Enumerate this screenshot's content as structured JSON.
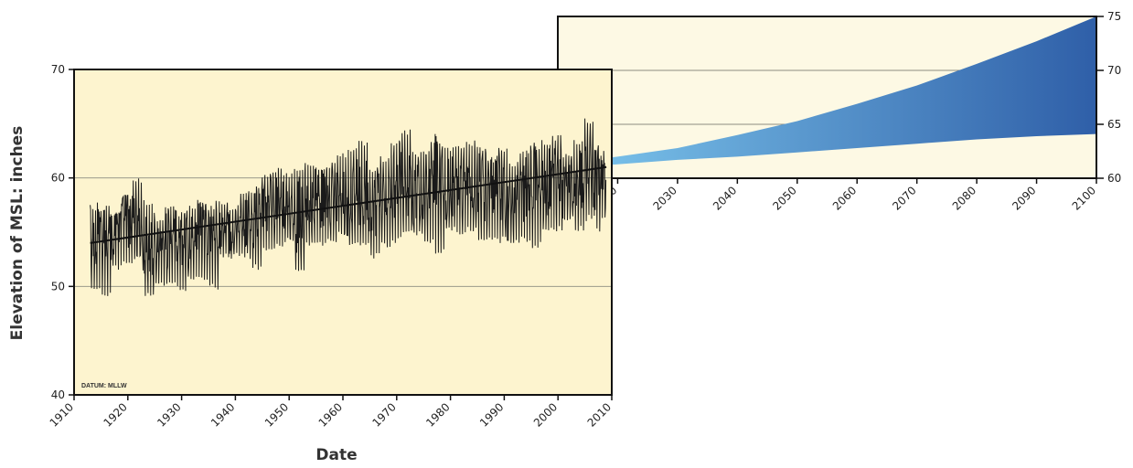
{
  "chart_data": [
    {
      "type": "line",
      "xlabel": "Date",
      "ylabel": "Elevation of MSL: inches",
      "annotation": "DATUM: MLLW",
      "xlim": [
        1910,
        2010
      ],
      "ylim": [
        40,
        70
      ],
      "x_ticks": [
        "1910",
        "1920",
        "1930",
        "1940",
        "1950",
        "1960",
        "1970",
        "1980",
        "1990",
        "2000",
        "2010"
      ],
      "y_ticks": [
        "40",
        "50",
        "60",
        "70"
      ],
      "grid": "horizontal",
      "background": "#fdf4cf",
      "series": [
        {
          "style": "monthly mean",
          "color": "#1a1a1a",
          "x": [
            1913,
            1915,
            1917,
            1919,
            1921,
            1923,
            1925,
            1927,
            1929,
            1931,
            1933,
            1935,
            1937,
            1939,
            1941,
            1943,
            1945,
            1947,
            1949,
            1951,
            1953,
            1955,
            1957,
            1959,
            1961,
            1963,
            1965,
            1967,
            1969,
            1971,
            1973,
            1975,
            1977,
            1979,
            1981,
            1983,
            1985,
            1987,
            1989,
            1991,
            1993,
            1995,
            1997,
            1999,
            2001,
            2003,
            2005,
            2007,
            2008
          ],
          "y": [
            54.5,
            55.5,
            54.5,
            56.0,
            56.0,
            54.0,
            53.5,
            54.0,
            55.0,
            54.0,
            55.5,
            54.5,
            55.5,
            55.0,
            55.5,
            56.0,
            57.0,
            58.0,
            57.0,
            56.5,
            57.0,
            58.0,
            58.0,
            58.5,
            57.0,
            58.5,
            57.5,
            58.0,
            59.0,
            60.0,
            58.5,
            58.5,
            61.0,
            59.0,
            59.0,
            60.0,
            59.0,
            59.0,
            59.5,
            57.0,
            58.5,
            60.0,
            59.0,
            60.0,
            59.5,
            60.0,
            60.5,
            60.0,
            59.5
          ],
          "y_min": [
            49.5,
            49.0,
            51.5,
            52.0,
            52.5,
            48.8,
            50.0,
            50.0,
            49.5,
            50.5,
            50.5,
            49.7,
            52.5,
            52.5,
            52.5,
            51.5,
            53.0,
            53.5,
            54.0,
            51.0,
            53.5,
            53.5,
            54.0,
            54.5,
            53.5,
            53.5,
            52.5,
            53.5,
            54.0,
            55.0,
            54.5,
            54.0,
            53.0,
            55.0,
            54.5,
            55.0,
            54.0,
            54.0,
            54.0,
            54.0,
            54.0,
            53.5,
            55.0,
            55.0,
            56.0,
            55.0,
            56.0,
            54.8,
            56.0
          ],
          "y_max": [
            57.5,
            57.5,
            57.0,
            58.5,
            60.0,
            58.0,
            56.5,
            57.5,
            57.0,
            57.5,
            58.0,
            57.5,
            58.0,
            57.5,
            59.0,
            59.0,
            60.5,
            61.0,
            60.5,
            61.0,
            61.5,
            61.0,
            61.5,
            62.5,
            63.0,
            63.5,
            61.0,
            62.0,
            63.5,
            64.5,
            62.5,
            62.5,
            63.5,
            63.0,
            63.0,
            63.5,
            63.0,
            62.0,
            63.0,
            61.5,
            62.5,
            63.0,
            63.5,
            64.0,
            62.5,
            63.5,
            65.5,
            63.0,
            62.5
          ]
        },
        {
          "style": "trend",
          "color": "#111111",
          "x": [
            1913,
            2009
          ],
          "y": [
            54.0,
            61.0
          ]
        }
      ]
    },
    {
      "type": "area",
      "xlim": [
        2010,
        2100
      ],
      "ylim": [
        60,
        75
      ],
      "x_ticks": [
        "2020",
        "2030",
        "2040",
        "2050",
        "2060",
        "2070",
        "2080",
        "2090",
        "2100"
      ],
      "y_ticks": [
        "60",
        "65",
        "70",
        "75"
      ],
      "grid": "horizontal",
      "background": "#fdf9e4",
      "band_colors": [
        "#7ec8ee",
        "#2f5fa8"
      ],
      "series": [
        {
          "style": "projection band",
          "x": [
            2010,
            2020,
            2030,
            2040,
            2050,
            2060,
            2070,
            2080,
            2090,
            2100
          ],
          "y_low": [
            60.9,
            61.3,
            61.7,
            62.0,
            62.4,
            62.8,
            63.2,
            63.6,
            63.9,
            64.1
          ],
          "y_high": [
            61.3,
            62.0,
            62.8,
            64.0,
            65.3,
            66.9,
            68.6,
            70.6,
            72.7,
            75.0
          ]
        }
      ]
    }
  ]
}
